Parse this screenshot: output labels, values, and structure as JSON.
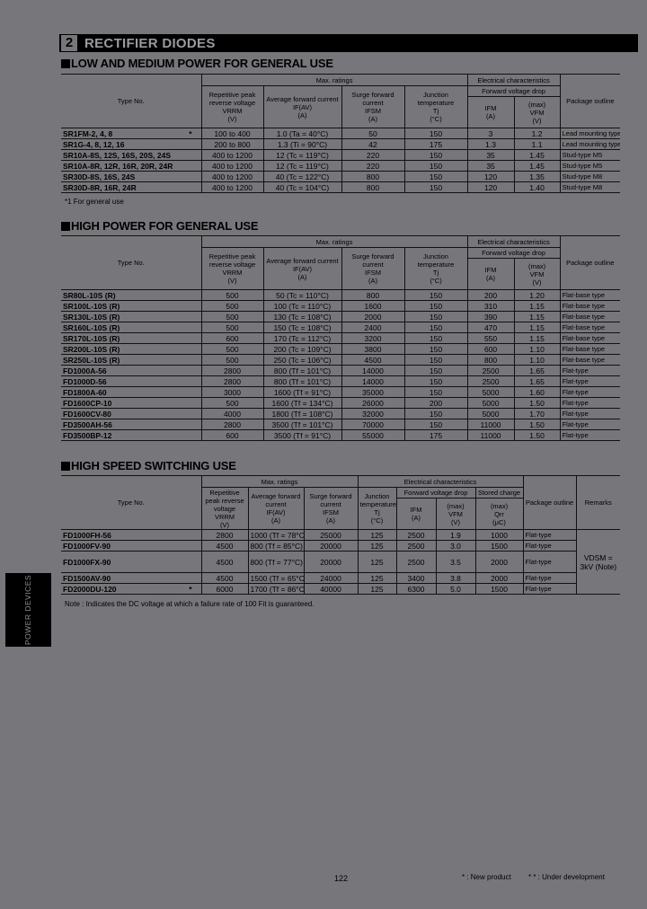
{
  "banner": {
    "number": "2",
    "title": "RECTIFIER DIODES"
  },
  "colors": {
    "background": "#77767b",
    "banner": "#000000",
    "text": "#000000"
  },
  "sections": [
    {
      "title": "LOW AND MEDIUM POWER FOR GENERAL USE"
    },
    {
      "title": "HIGH POWER FOR GENERAL USE"
    },
    {
      "title": "HIGH SPEED SWITCHING USE"
    }
  ],
  "headers": {
    "type_no": "Type No.",
    "max_ratings": "Max. ratings",
    "electrical": "Electrical characteristics",
    "vrrm": "Repetitive peak reverse voltage",
    "vrrm_sym": "VRRM",
    "vrrm_unit": "(V)",
    "ifav": "Average forward current",
    "ifav_sym": "IF(AV)",
    "ifav_unit": "(A)",
    "ifsm": "Surge forward current",
    "ifsm_sym": "IFSM",
    "ifsm_unit": "(A)",
    "tj": "Junction temperature",
    "tj_sym": "Tj",
    "tj_unit": "(°C)",
    "vfd": "Forward voltage drop",
    "ifm_sym": "IFM",
    "ifm_unit": "(A)",
    "max": "(max)",
    "vfm_sym": "VFM",
    "vfm_unit": "(V)",
    "qrr": "Stored charge",
    "qrr_sym": "Qrr",
    "qrr_unit": "(μC)",
    "pkg": "Package outline",
    "remarks": "Remarks"
  },
  "table1": {
    "rows": [
      [
        "SR1FM-2, 4, 8",
        "100 to 400",
        "1.0 (Ta = 40°C)",
        "50",
        "150",
        "3",
        "1.2",
        "Lead mounting type",
        "*"
      ],
      [
        "SR1G-4, 8, 12, 16",
        "200 to 800",
        "1.3 (Ti = 90°C)",
        "42",
        "175",
        "1.3",
        "1.1",
        "Lead mounting type",
        ""
      ],
      [
        "SR10A-8S, 12S, 16S, 20S, 24S",
        "400 to 1200",
        "12 (Tc = 119°C)",
        "220",
        "150",
        "35",
        "1.45",
        "Stud-type  M5",
        ""
      ],
      [
        "SR10A-8R, 12R, 16R, 20R, 24R",
        "400 to 1200",
        "12 (Tc = 119°C)",
        "220",
        "150",
        "35",
        "1.45",
        "Stud-type  M5",
        ""
      ],
      [
        "SR30D-8S, 16S, 24S",
        "400 to 1200",
        "40 (Tc = 122°C)",
        "800",
        "150",
        "120",
        "1.35",
        "Stud-type  M8",
        ""
      ],
      [
        "SR30D-8R, 16R, 24R",
        "400 to 1200",
        "40 (Tc = 104°C)",
        "800",
        "150",
        "120",
        "1.40",
        "Stud-type  M8",
        ""
      ]
    ],
    "footnote": "*1   For general use"
  },
  "table2": {
    "rows": [
      [
        "SR80L-10S (R)",
        "500",
        "50 (Tc = 110°C)",
        "800",
        "150",
        "200",
        "1.20",
        "Flat-base type"
      ],
      [
        "SR100L-10S (R)",
        "500",
        "100 (Tc = 110°C)",
        "1600",
        "150",
        "310",
        "1.15",
        "Flat-base type"
      ],
      [
        "SR130L-10S (R)",
        "500",
        "130 (Tc = 108°C)",
        "2000",
        "150",
        "390",
        "1.15",
        "Flat-base type"
      ],
      [
        "SR160L-10S (R)",
        "500",
        "150 (Tc = 108°C)",
        "2400",
        "150",
        "470",
        "1.15",
        "Flat-base type"
      ],
      [
        "SR170L-10S (R)",
        "600",
        "170 (Tc = 112°C)",
        "3200",
        "150",
        "550",
        "1.15",
        "Flat-base type"
      ],
      [
        "SR200L-10S (R)",
        "500",
        "200 (Tc = 109°C)",
        "3800",
        "150",
        "600",
        "1.10",
        "Flat-base type"
      ],
      [
        "SR250L-10S (R)",
        "500",
        "250 (Tc = 106°C)",
        "4500",
        "150",
        "800",
        "1.10",
        "Flat-base type"
      ],
      [
        "FD1000A-56",
        "2800",
        "800 (Tf = 101°C)",
        "14000",
        "150",
        "2500",
        "1.65",
        "Flat-type"
      ],
      [
        "FD1000D-56",
        "2800",
        "800 (Tf = 101°C)",
        "14000",
        "150",
        "2500",
        "1.65",
        "Flat-type"
      ],
      [
        "FD1800A-60",
        "3000",
        "1600 (Tf = 91°C)",
        "35000",
        "150",
        "5000",
        "1.60",
        "Flat-type"
      ],
      [
        "FD1600CP-10",
        "500",
        "1600 (Tf = 134°C)",
        "26000",
        "200",
        "5000",
        "1.50",
        "Flat-type"
      ],
      [
        "FD1600CV-80",
        "4000",
        "1800 (Tf = 108°C)",
        "32000",
        "150",
        "5000",
        "1.70",
        "Flat-type"
      ],
      [
        "FD3500AH-56",
        "2800",
        "3500 (Tf = 101°C)",
        "70000",
        "150",
        "11000",
        "1.50",
        "Flat-type"
      ],
      [
        "FD3500BP-12",
        "600",
        "3500 (Tf = 91°C)",
        "55000",
        "175",
        "11000",
        "1.50",
        "Flat-type"
      ]
    ]
  },
  "table3": {
    "rows": [
      [
        "FD1000FH-56",
        "2800",
        "1000 (Tf = 78°C)",
        "25000",
        "125",
        "2500",
        "1.9",
        "1000",
        "Flat-type",
        ""
      ],
      [
        "FD1000FV-90",
        "4500",
        "800 (Tf = 85°C)",
        "20000",
        "125",
        "2500",
        "3.0",
        "1500",
        "Flat-type",
        ""
      ],
      [
        "FD1000FX-90",
        "4500",
        "800 (Tf = 77°C)",
        "20000",
        "125",
        "2500",
        "3.5",
        "2000",
        "Flat-type",
        ""
      ],
      [
        "FD1500AV-90",
        "4500",
        "1500 (Tf = 65°C)",
        "24000",
        "125",
        "3400",
        "3.8",
        "2000",
        "Flat-type",
        ""
      ],
      [
        "FD2000DU-120",
        "6000",
        "1700 (Tf = 86°C)",
        "40000",
        "125",
        "6300",
        "5.0",
        "1500",
        "Flat-type",
        "*"
      ]
    ],
    "remark": "VDSM = 3kV (Note)",
    "note": "Note :  Indicates the DC voltage at which a failure rate of 100 Fit is guaranteed."
  },
  "sidebar_tab": "POWER DEVICES",
  "footer": {
    "page": "122",
    "legend_new": "* : New product",
    "legend_dev": "* * : Under development"
  }
}
